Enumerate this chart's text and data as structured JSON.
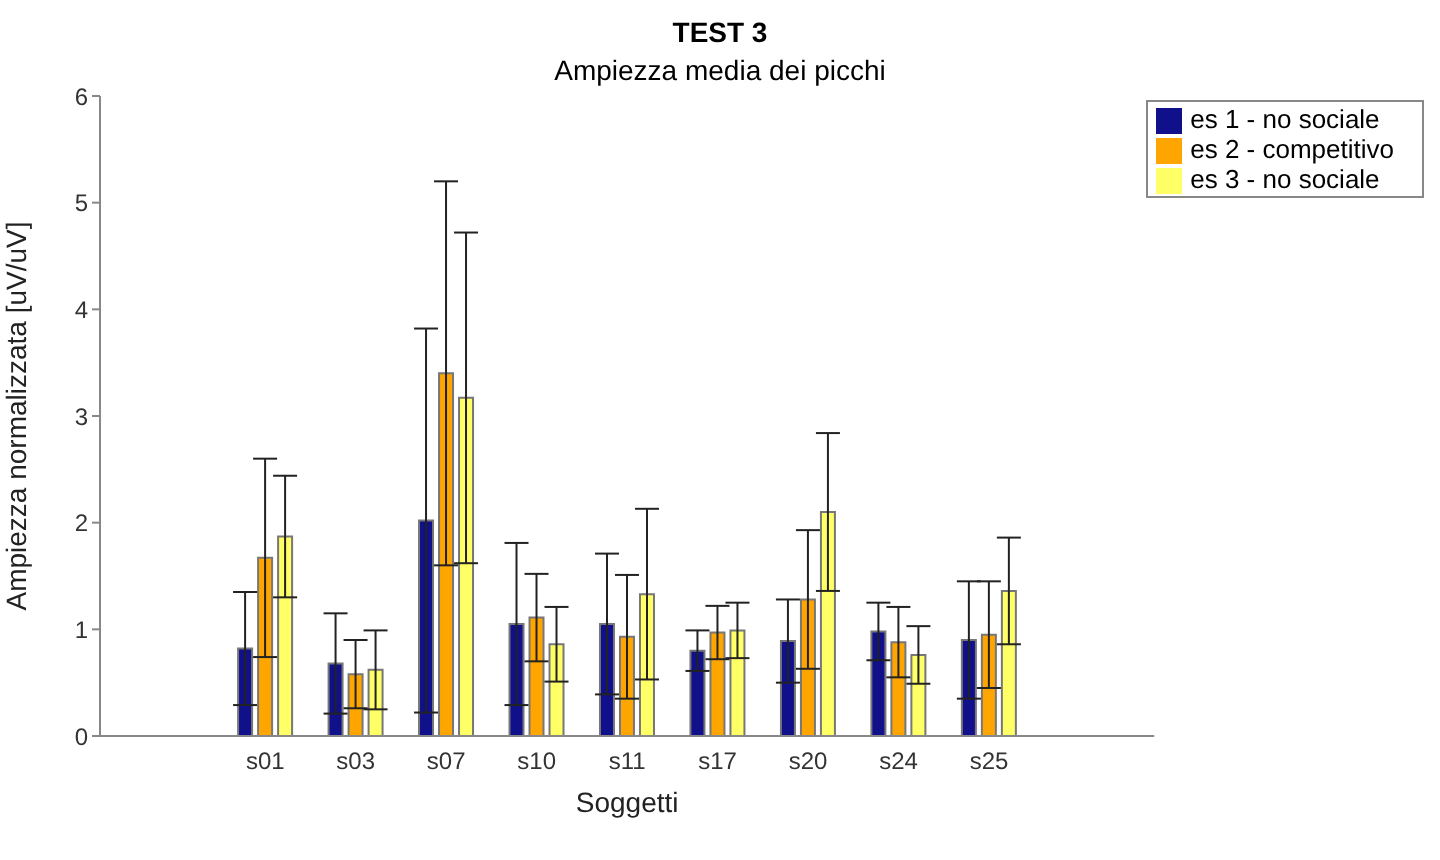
{
  "chart_data": {
    "type": "bar",
    "title": "TEST 3",
    "subtitle": "Ampiezza media dei picchi",
    "xlabel": "Soggetti",
    "ylabel": "Ampiezza normalizzata [uV/uV]",
    "categories": [
      "s01",
      "s03",
      "s07",
      "s10",
      "s11",
      "s17",
      "s20",
      "s24",
      "s25"
    ],
    "series": [
      {
        "name": "es 1 - no sociale",
        "color": "#10108a",
        "values": [
          0.82,
          0.68,
          2.02,
          1.05,
          1.05,
          0.8,
          0.89,
          0.98,
          0.9
        ],
        "errors": [
          0.53,
          0.47,
          1.8,
          0.76,
          0.66,
          0.19,
          0.39,
          0.27,
          0.55
        ]
      },
      {
        "name": "es 2 - competitivo",
        "color": "#ffa500",
        "values": [
          1.67,
          0.58,
          3.4,
          1.11,
          0.93,
          0.97,
          1.28,
          0.88,
          0.95
        ],
        "errors": [
          0.93,
          0.32,
          1.8,
          0.41,
          0.58,
          0.25,
          0.65,
          0.33,
          0.5
        ]
      },
      {
        "name": "es 3 - no sociale",
        "color": "#ffff66",
        "values": [
          1.87,
          0.62,
          3.17,
          0.86,
          1.33,
          0.99,
          2.1,
          0.76,
          1.36
        ],
        "errors": [
          0.57,
          0.37,
          1.55,
          0.35,
          0.8,
          0.26,
          0.74,
          0.27,
          0.5
        ]
      }
    ],
    "ylim": [
      0,
      6
    ],
    "yticks": [
      0,
      1,
      2,
      3,
      4,
      5,
      6
    ],
    "grid": false,
    "legend": "top right"
  }
}
